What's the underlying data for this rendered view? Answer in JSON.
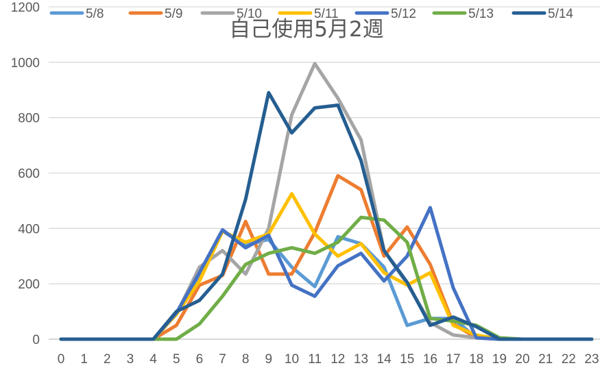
{
  "chart_data": {
    "type": "line",
    "title": "自己使用5月2週",
    "xlabel": "",
    "ylabel": "",
    "x": [
      0,
      1,
      2,
      3,
      4,
      5,
      6,
      7,
      8,
      9,
      10,
      11,
      12,
      13,
      14,
      15,
      16,
      17,
      18,
      19,
      20,
      21,
      22,
      23
    ],
    "ylim": [
      0,
      1200
    ],
    "yticks": [
      0,
      200,
      400,
      600,
      800,
      1000,
      1200
    ],
    "grid": true,
    "legend_position": "top",
    "series": [
      {
        "name": "5/8",
        "color": "#5B9BD5",
        "values": [
          0,
          0,
          0,
          0,
          0,
          90,
          230,
          390,
          340,
          360,
          260,
          190,
          370,
          345,
          260,
          50,
          75,
          75,
          5,
          0,
          0,
          0,
          0,
          0
        ]
      },
      {
        "name": "5/9",
        "color": "#ED7D31",
        "values": [
          0,
          0,
          0,
          0,
          0,
          50,
          195,
          230,
          425,
          235,
          235,
          385,
          590,
          540,
          300,
          405,
          270,
          55,
          5,
          0,
          0,
          0,
          0,
          0
        ]
      },
      {
        "name": "5/10",
        "color": "#A5A5A5",
        "values": [
          0,
          0,
          0,
          0,
          0,
          90,
          260,
          320,
          235,
          400,
          810,
          995,
          870,
          720,
          320,
          200,
          60,
          15,
          5,
          0,
          0,
          0,
          0,
          0
        ]
      },
      {
        "name": "5/11",
        "color": "#FFC000",
        "values": [
          0,
          0,
          0,
          0,
          0,
          90,
          210,
          390,
          350,
          380,
          525,
          380,
          300,
          345,
          240,
          195,
          240,
          50,
          15,
          0,
          0,
          0,
          0,
          0
        ]
      },
      {
        "name": "5/12",
        "color": "#4472C4",
        "values": [
          0,
          0,
          0,
          0,
          0,
          95,
          240,
          395,
          330,
          375,
          195,
          155,
          265,
          310,
          210,
          300,
          475,
          185,
          5,
          0,
          0,
          0,
          0,
          0
        ]
      },
      {
        "name": "5/13",
        "color": "#70AD47",
        "values": [
          0,
          0,
          0,
          0,
          0,
          0,
          55,
          155,
          270,
          310,
          330,
          310,
          350,
          440,
          430,
          350,
          75,
          65,
          50,
          5,
          0,
          0,
          0,
          0
        ]
      },
      {
        "name": "5/14",
        "color": "#255E91",
        "values": [
          0,
          0,
          0,
          0,
          0,
          100,
          140,
          235,
          505,
          890,
          745,
          835,
          845,
          645,
          320,
          205,
          50,
          80,
          45,
          0,
          0,
          0,
          0,
          0
        ]
      }
    ]
  }
}
